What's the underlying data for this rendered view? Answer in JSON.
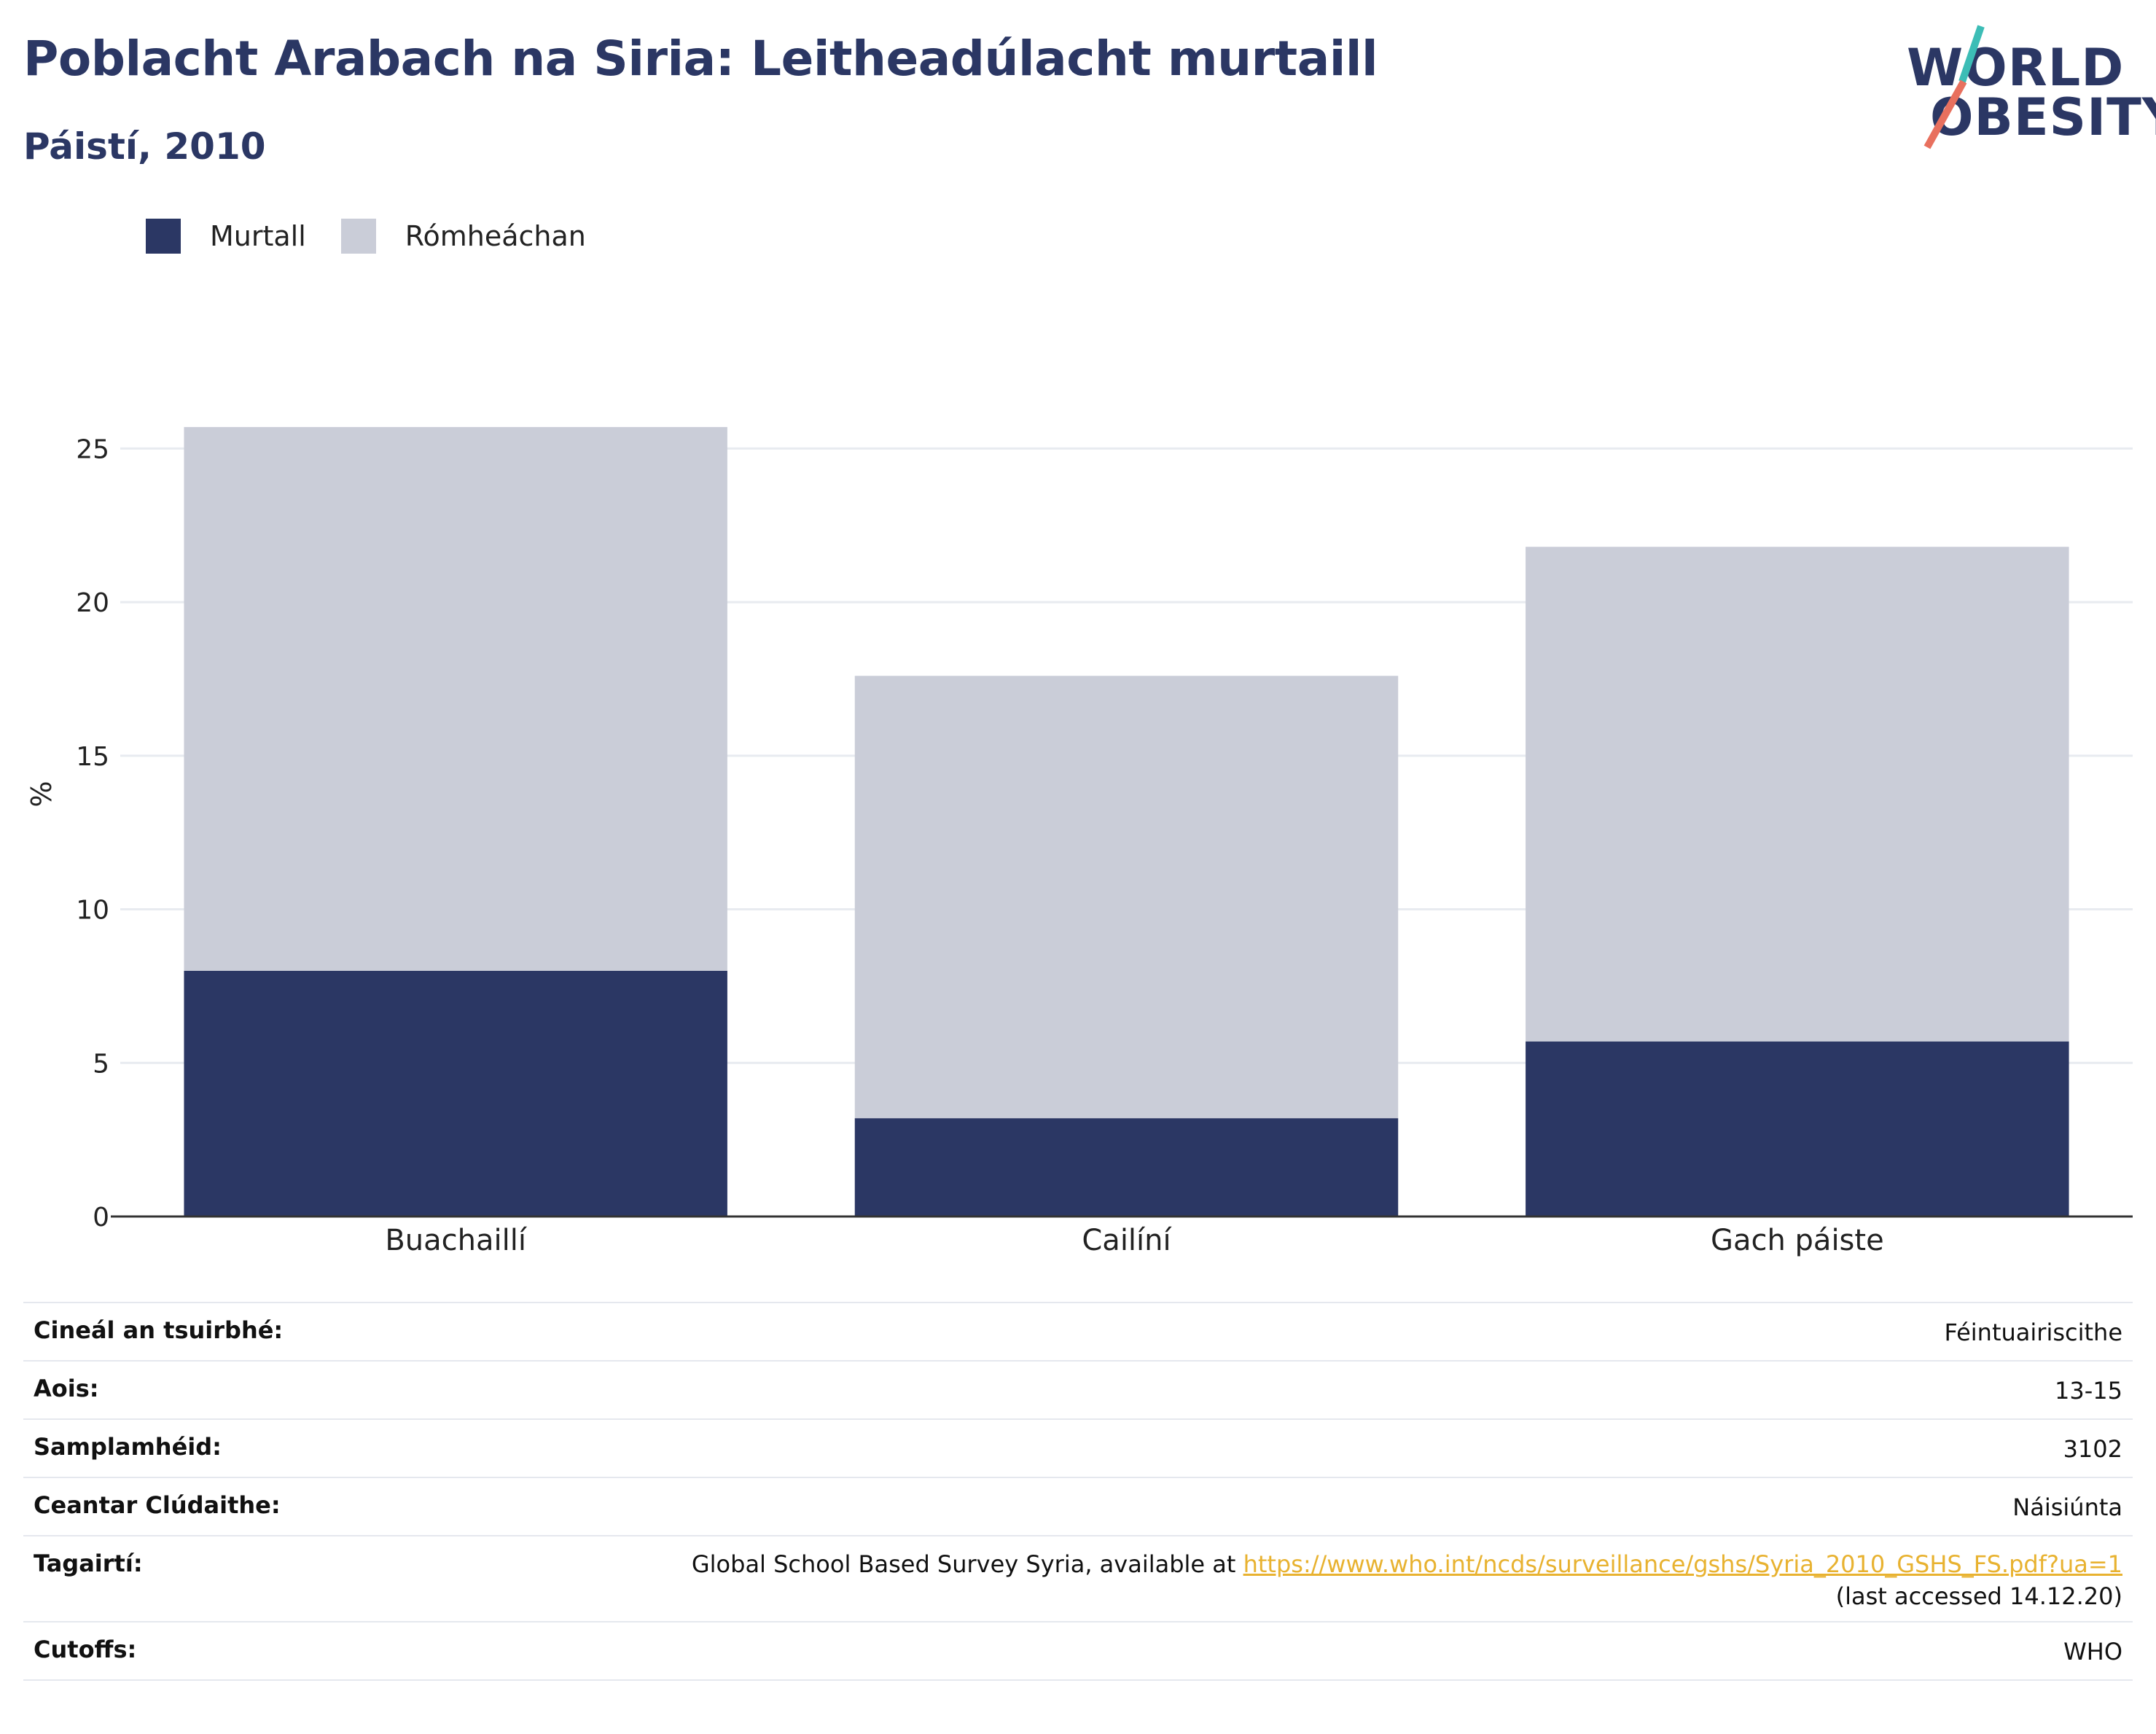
{
  "header": {
    "title": "Poblacht Arabach na Siria: Leitheadúlacht murtaill",
    "subtitle": "Páistí, 2010"
  },
  "logo": {
    "line1": "WORLD",
    "line2": "OBESITY",
    "slash_colors": [
      "#3cbdb6",
      "#e8705e"
    ]
  },
  "colors": {
    "obese": "#2b3764",
    "overweight": "#cacdd8",
    "grid": "#e8ebf0",
    "axis": "#333333",
    "link": "#e8b230"
  },
  "chart_data": {
    "type": "bar",
    "stacked": true,
    "categories": [
      "Buachaillí",
      "Cailíní",
      "Gach páiste"
    ],
    "series": [
      {
        "name": "Murtall",
        "values": [
          8.0,
          3.2,
          5.7
        ]
      },
      {
        "name": "Rómheáchan",
        "values": [
          17.7,
          14.4,
          16.1
        ]
      }
    ],
    "totals": [
      25.7,
      17.6,
      21.8
    ],
    "ylabel": "%",
    "xlabel": "",
    "ylim": [
      0,
      27.5
    ],
    "yticks": [
      "0",
      "5",
      "10",
      "15",
      "20",
      "25"
    ],
    "grid": true,
    "legend_position": "top-left"
  },
  "info_table": [
    {
      "label": "Cineál an tsuirbhé:",
      "value": "Féintuairiscithe"
    },
    {
      "label": "Aois:",
      "value": "13-15"
    },
    {
      "label": "Samplamhéid:",
      "value": "3102"
    },
    {
      "label": "Ceantar Clúdaithe:",
      "value": "Náisiúnta"
    },
    {
      "label": "Tagairtí:",
      "value_prefix": "Global School Based Survey Syria, available at ",
      "link": "https://www.who.int/ncds/surveillance/gshs/Syria_2010_GSHS_FS.pdf?ua=1",
      "value_suffix": " (last accessed 14.12.20)"
    },
    {
      "label": "Cutoffs:",
      "value": "WHO"
    }
  ]
}
